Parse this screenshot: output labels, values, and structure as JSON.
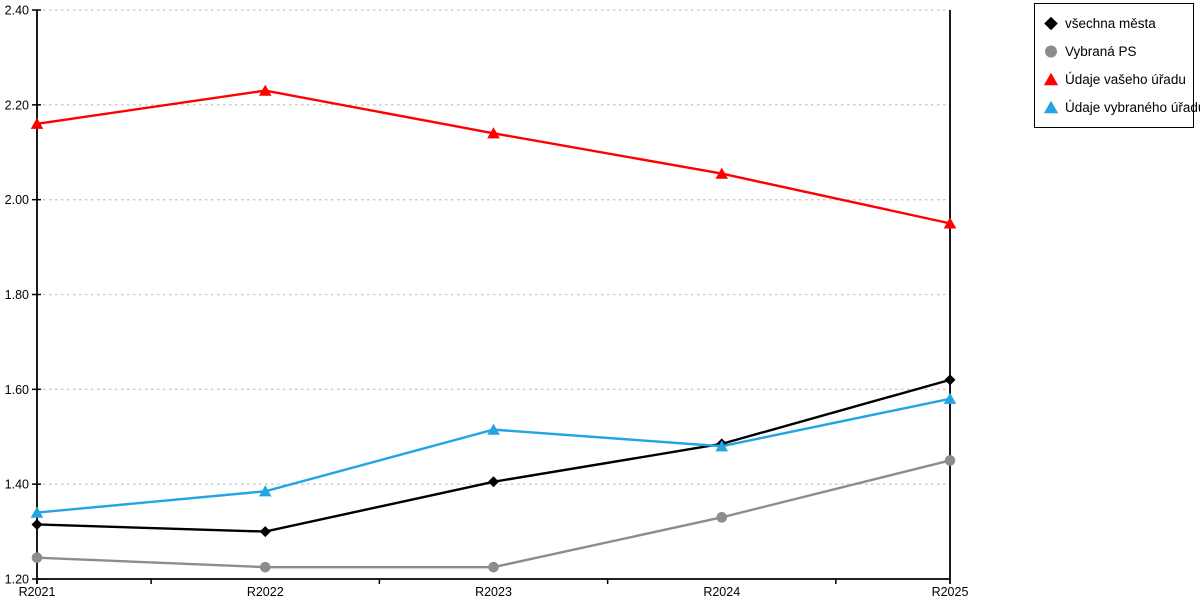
{
  "chart_data": {
    "type": "line",
    "categories": [
      "R2021",
      "R2022",
      "R2023",
      "R2024",
      "R2025"
    ],
    "series": [
      {
        "name": "všechna města",
        "color": "#000000",
        "marker": "diamond",
        "values": [
          1.315,
          1.3,
          1.405,
          1.485,
          1.62
        ]
      },
      {
        "name": "Vybraná PS",
        "color": "#8C8C8C",
        "marker": "circle",
        "values": [
          1.245,
          1.225,
          1.225,
          1.33,
          1.45
        ]
      },
      {
        "name": "Údaje vašeho úřadu",
        "color": "#FF0000",
        "marker": "triangle",
        "values": [
          2.16,
          2.23,
          2.14,
          2.055,
          1.95
        ]
      },
      {
        "name": "Údaje vybraného úřadu",
        "color": "#22A5E2",
        "marker": "triangle",
        "values": [
          1.34,
          1.385,
          1.515,
          1.48,
          1.58
        ]
      }
    ],
    "y_ticks": [
      1.2,
      1.4,
      1.6,
      1.8,
      2.0,
      2.2,
      2.4
    ],
    "ylim": [
      1.2,
      2.4
    ],
    "xlabel": "",
    "ylabel": "",
    "grid": "horizontal-dashed",
    "legend_position": "outside-top-right"
  },
  "style_colors": {
    "grid": "#C8C8C8",
    "axis": "#000000",
    "background": "#FFFFFF"
  }
}
